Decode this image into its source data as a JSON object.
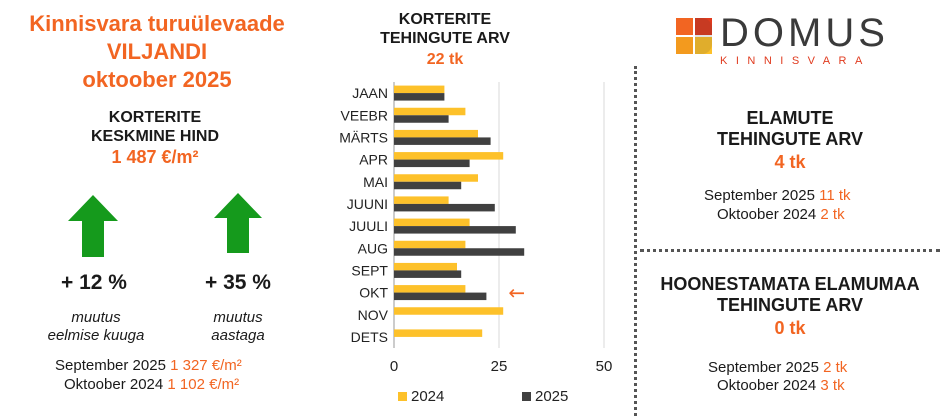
{
  "left": {
    "title_lines": [
      "Kinnisvara turuülevaade",
      "VILJANDI",
      "oktoober 2025"
    ],
    "subtitle_lines": [
      "KORTERITE",
      "KESKMINE HIND"
    ],
    "price": "1 487 €/m²",
    "change_month": {
      "value": "+ 12 %",
      "caption_lines": [
        "muutus",
        "eelmise kuuga"
      ]
    },
    "change_year": {
      "value": "+ 35 %",
      "caption_lines": [
        "muutus",
        "aastaga"
      ]
    },
    "comparisons": [
      {
        "label": "September 2025",
        "value": "1 327 €/m²"
      },
      {
        "label": "Oktoober 2024",
        "value": "1 102 €/m²"
      }
    ],
    "colors": {
      "accent": "#F26522",
      "arrow": "#159A1C"
    },
    "icons": [
      "arrow-up-icon",
      "arrow-up-icon"
    ]
  },
  "chart_data": {
    "type": "bar",
    "orientation": "horizontal",
    "title_lines": [
      "KORTERITE",
      "TEHINGUTE ARV"
    ],
    "total": "22 tk",
    "categories": [
      "JAAN",
      "VEEBR",
      "MÄRTS",
      "APR",
      "MAI",
      "JUUNI",
      "JUULI",
      "AUG",
      "SEPT",
      "OKT",
      "NOV",
      "DETS"
    ],
    "series": [
      {
        "name": "2024",
        "color": "#FDC12A",
        "values": [
          12,
          17,
          20,
          26,
          20,
          13,
          18,
          17,
          15,
          17,
          26,
          21
        ]
      },
      {
        "name": "2025",
        "color": "#404040",
        "values": [
          12,
          13,
          23,
          18,
          16,
          24,
          29,
          31,
          16,
          22,
          null,
          null
        ]
      }
    ],
    "xlim": [
      0,
      50
    ],
    "xticks": [
      "0",
      "25",
      "50"
    ],
    "legend_position": "bottom",
    "marker": {
      "category": "OKT",
      "symbol": "←",
      "color": "#F26522"
    }
  },
  "logo": {
    "name": "DOMUS",
    "tagline": "KINNISVARA"
  },
  "right": {
    "houses": {
      "title_lines": [
        "ELAMUTE",
        "TEHINGUTE ARV"
      ],
      "value": "4 tk",
      "comparisons": [
        {
          "label": "September 2025",
          "value": "11 tk"
        },
        {
          "label": "Oktoober 2024",
          "value": "2 tk"
        }
      ]
    },
    "land": {
      "title_lines": [
        "HOONESTAMATA ELAMUMAA",
        "TEHINGUTE ARV"
      ],
      "value": "0 tk",
      "comparisons": [
        {
          "label": "September 2025",
          "value": "2 tk"
        },
        {
          "label": "Oktoober 2024",
          "value": "3 tk"
        }
      ]
    }
  }
}
